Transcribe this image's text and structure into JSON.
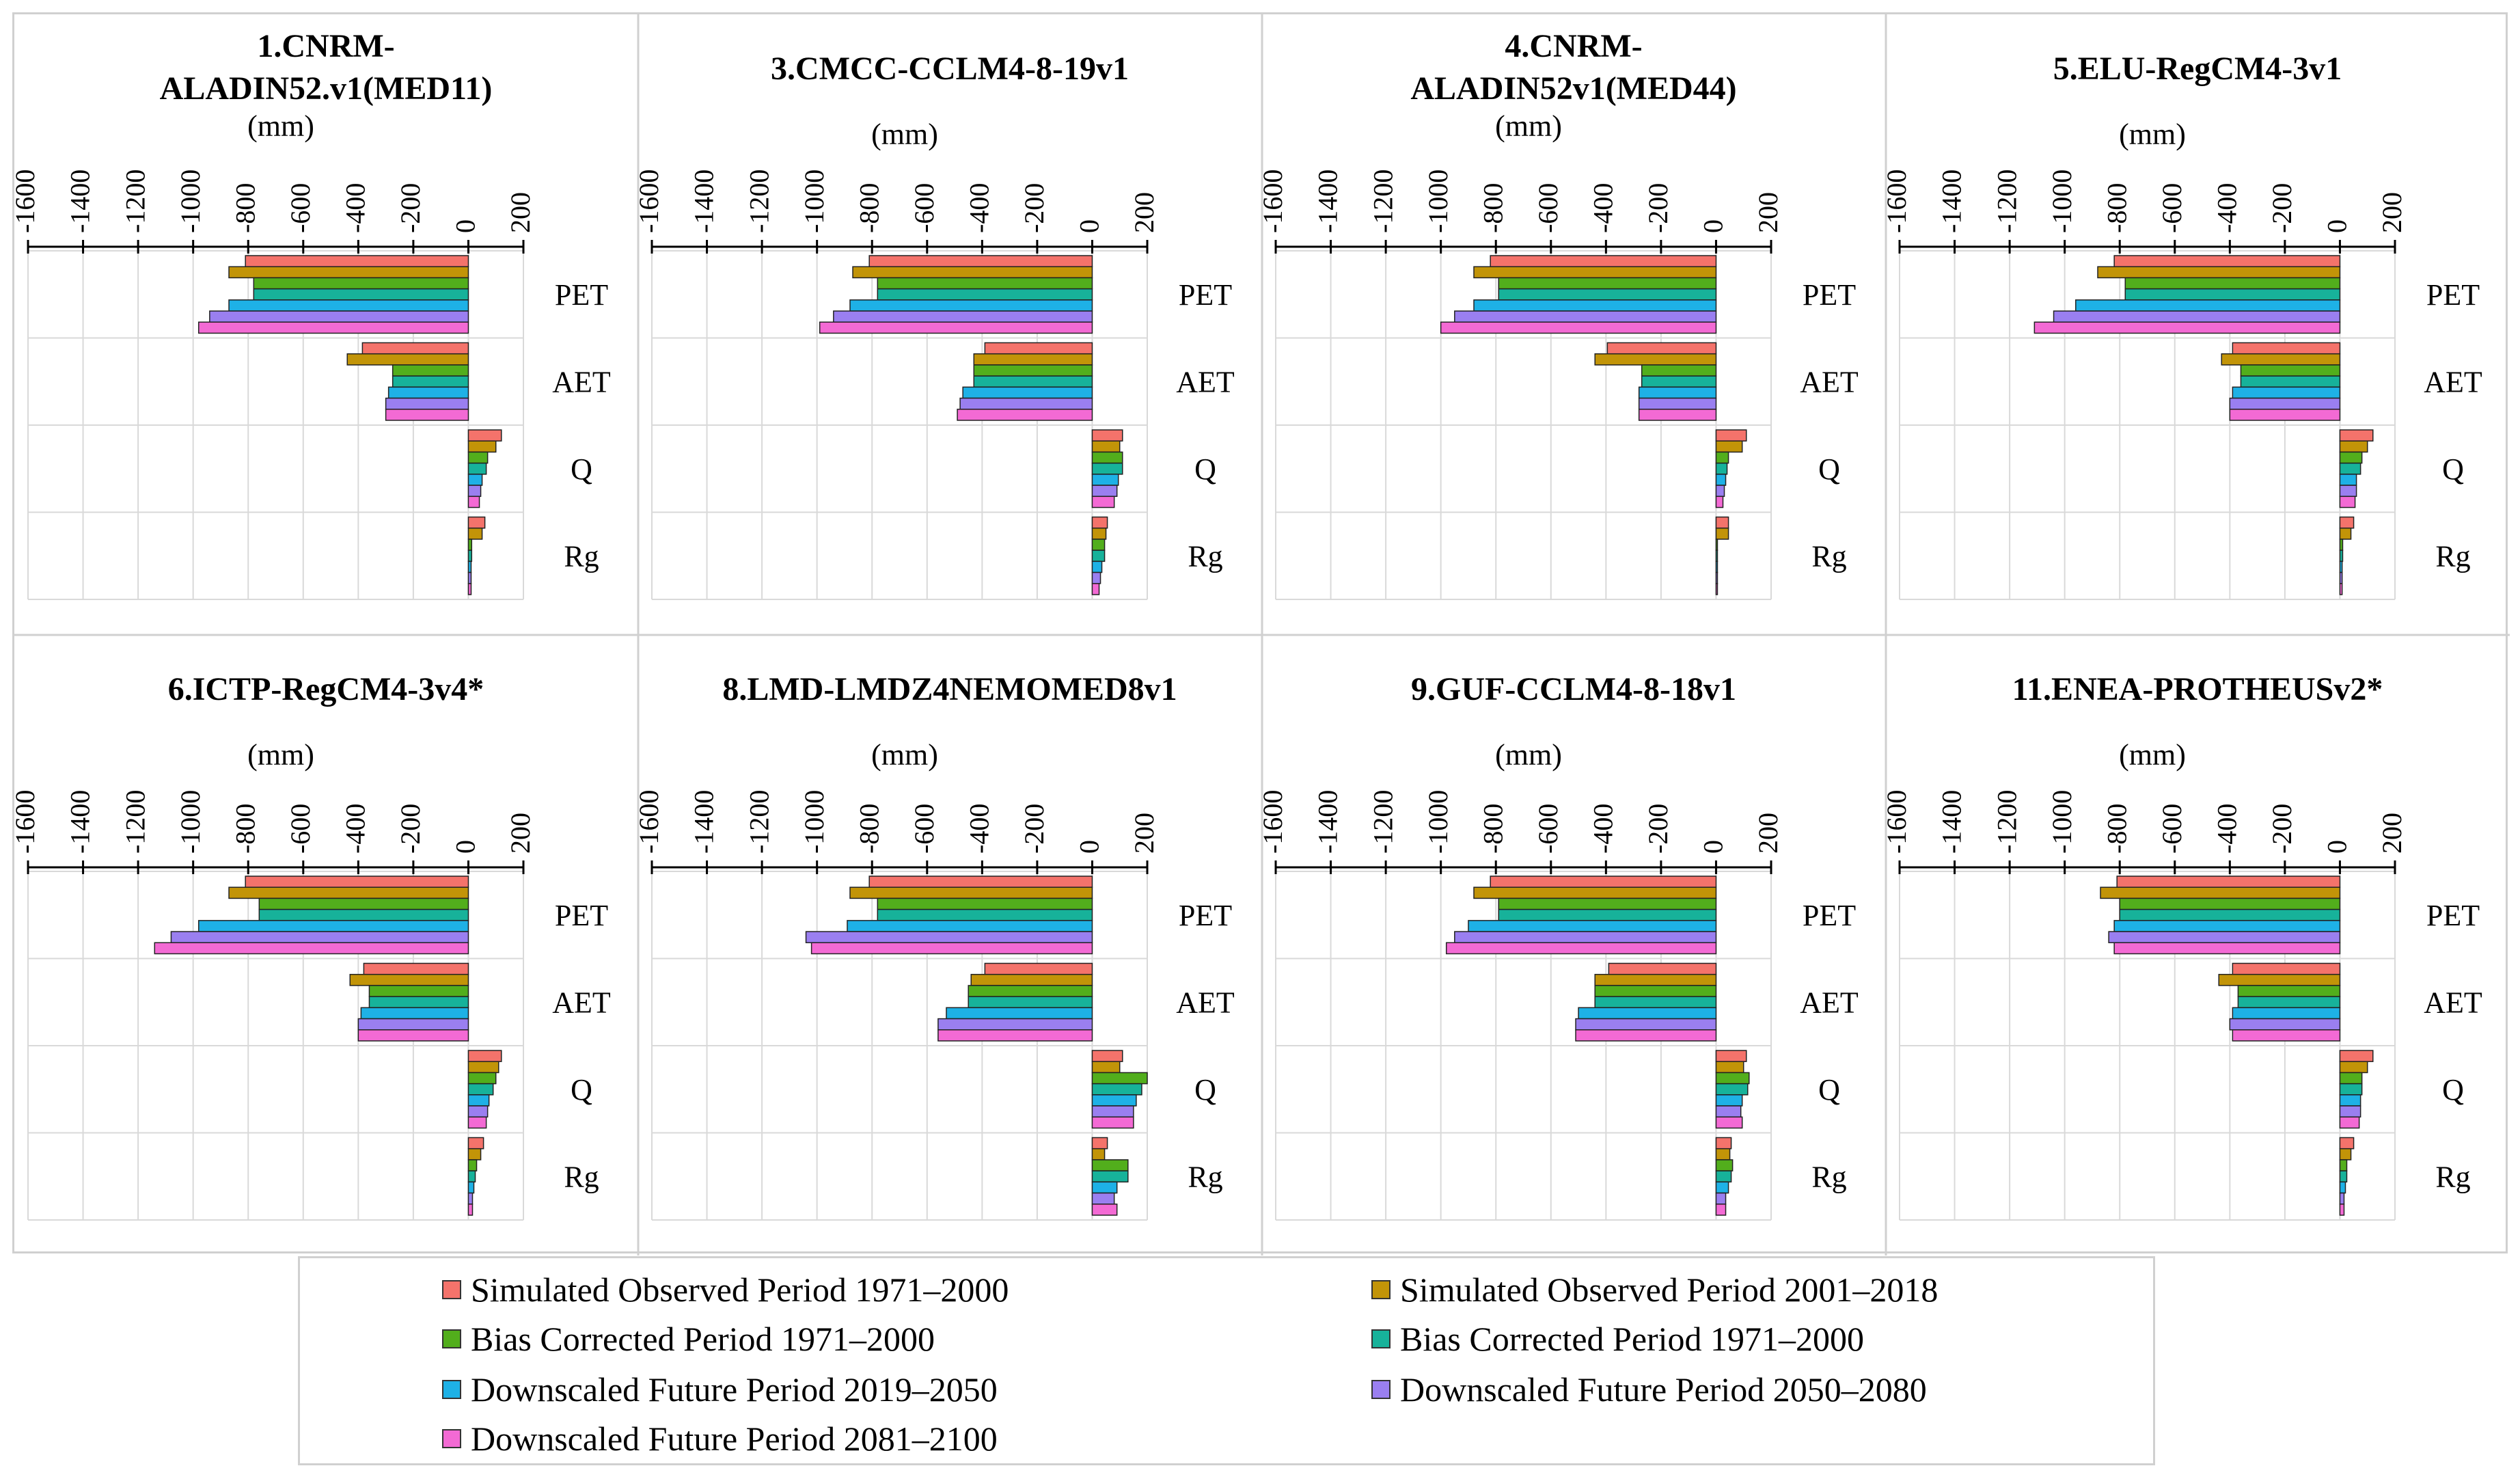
{
  "colors": {
    "series": [
      "#F4736B",
      "#C29408",
      "#52AE1C",
      "#17B29A",
      "#1EB1E6",
      "#9A7FF0",
      "#F36AD4"
    ],
    "grid": "#d9d9d9",
    "axis": "#000000"
  },
  "legend": {
    "items": [
      "Simulated Observed Period 1971–2000",
      "Simulated Observed Period 2001–2018",
      "Bias Corrected Period 1971–2000",
      "Bias Corrected Period 1971–2000",
      "Downscaled Future Period 2019–2050",
      "Downscaled Future Period 2050–2080",
      "Downscaled Future Period 2081–2100"
    ]
  },
  "chart_data": [
    {
      "type": "bar",
      "orientation": "horizontal",
      "title": "1.CNRM-ALADIN52.v1(MED11)",
      "unit": "(mm)",
      "xlim": [
        -1600,
        200
      ],
      "ticks": [
        -1600,
        -1400,
        -1200,
        -1000,
        -800,
        -600,
        -400,
        -200,
        0,
        200
      ],
      "categories": [
        "PET",
        "AET",
        "Q",
        "Rg"
      ],
      "series": [
        {
          "name": "Simulated Observed Period 1971–2000",
          "values": [
            -810,
            -385,
            120,
            60
          ]
        },
        {
          "name": "Simulated Observed Period 2001–2018",
          "values": [
            -870,
            -440,
            100,
            50
          ]
        },
        {
          "name": "Bias Corrected Period 1971–2000",
          "values": [
            -780,
            -275,
            70,
            12
          ]
        },
        {
          "name": "Bias Corrected Period 1971–2000",
          "values": [
            -780,
            -275,
            65,
            12
          ]
        },
        {
          "name": "Downscaled Future Period 2019–2050",
          "values": [
            -870,
            -290,
            50,
            10
          ]
        },
        {
          "name": "Downscaled Future Period 2050–2080",
          "values": [
            -940,
            -300,
            45,
            10
          ]
        },
        {
          "name": "Downscaled Future Period 2081–2100",
          "values": [
            -980,
            -300,
            40,
            10
          ]
        }
      ]
    },
    {
      "type": "bar",
      "orientation": "horizontal",
      "title": "3.CMCC-CCLM4-8-19v1",
      "unit": "(mm)",
      "xlim": [
        -1600,
        200
      ],
      "ticks": [
        -1600,
        -1400,
        -1200,
        -1000,
        -800,
        -600,
        -400,
        -200,
        0,
        200
      ],
      "categories": [
        "PET",
        "AET",
        "Q",
        "Rg"
      ],
      "series": [
        {
          "name": "Simulated Observed Period 1971–2000",
          "values": [
            -810,
            -390,
            110,
            55
          ]
        },
        {
          "name": "Simulated Observed Period 2001–2018",
          "values": [
            -870,
            -430,
            100,
            50
          ]
        },
        {
          "name": "Bias Corrected Period 1971–2000",
          "values": [
            -780,
            -430,
            110,
            45
          ]
        },
        {
          "name": "Bias Corrected Period 1971–2000",
          "values": [
            -780,
            -430,
            110,
            45
          ]
        },
        {
          "name": "Downscaled Future Period 2019–2050",
          "values": [
            -880,
            -470,
            95,
            35
          ]
        },
        {
          "name": "Downscaled Future Period 2050–2080",
          "values": [
            -940,
            -480,
            90,
            30
          ]
        },
        {
          "name": "Downscaled Future Period 2081–2100",
          "values": [
            -990,
            -490,
            80,
            25
          ]
        }
      ]
    },
    {
      "type": "bar",
      "orientation": "horizontal",
      "title": "4.CNRM-ALADIN52v1(MED44)",
      "unit": "(mm)",
      "xlim": [
        -1600,
        200
      ],
      "ticks": [
        -1600,
        -1400,
        -1200,
        -1000,
        -800,
        -600,
        -400,
        -200,
        0,
        200
      ],
      "categories": [
        "PET",
        "AET",
        "Q",
        "Rg"
      ],
      "series": [
        {
          "name": "Simulated Observed Period 1971–2000",
          "values": [
            -820,
            -395,
            110,
            45
          ]
        },
        {
          "name": "Simulated Observed Period 2001–2018",
          "values": [
            -880,
            -440,
            95,
            45
          ]
        },
        {
          "name": "Bias Corrected Period 1971–2000",
          "values": [
            -790,
            -270,
            45,
            5
          ]
        },
        {
          "name": "Bias Corrected Period 1971–2000",
          "values": [
            -790,
            -270,
            40,
            5
          ]
        },
        {
          "name": "Downscaled Future Period 2019–2050",
          "values": [
            -880,
            -280,
            35,
            5
          ]
        },
        {
          "name": "Downscaled Future Period 2050–2080",
          "values": [
            -950,
            -280,
            30,
            5
          ]
        },
        {
          "name": "Downscaled Future Period 2081–2100",
          "values": [
            -1000,
            -280,
            25,
            5
          ]
        }
      ]
    },
    {
      "type": "bar",
      "orientation": "horizontal",
      "title": "5.ELU-RegCM4-3v1",
      "unit": "(mm)",
      "xlim": [
        -1600,
        200
      ],
      "ticks": [
        -1600,
        -1400,
        -1200,
        -1000,
        -800,
        -600,
        -400,
        -200,
        0,
        200
      ],
      "categories": [
        "PET",
        "AET",
        "Q",
        "Rg"
      ],
      "series": [
        {
          "name": "Simulated Observed Period 1971–2000",
          "values": [
            -820,
            -390,
            120,
            50
          ]
        },
        {
          "name": "Simulated Observed Period 2001–2018",
          "values": [
            -880,
            -430,
            100,
            40
          ]
        },
        {
          "name": "Bias Corrected Period 1971–2000",
          "values": [
            -780,
            -360,
            80,
            10
          ]
        },
        {
          "name": "Bias Corrected Period 1971–2000",
          "values": [
            -780,
            -360,
            75,
            10
          ]
        },
        {
          "name": "Downscaled Future Period 2019–2050",
          "values": [
            -960,
            -390,
            60,
            8
          ]
        },
        {
          "name": "Downscaled Future Period 2050–2080",
          "values": [
            -1040,
            -400,
            60,
            8
          ]
        },
        {
          "name": "Downscaled Future Period 2081–2100",
          "values": [
            -1110,
            -400,
            55,
            8
          ]
        }
      ]
    },
    {
      "type": "bar",
      "orientation": "horizontal",
      "title": "6.ICTP-RegCM4-3v4*",
      "unit": "(mm)",
      "xlim": [
        -1600,
        200
      ],
      "ticks": [
        -1600,
        -1400,
        -1200,
        -1000,
        -800,
        -600,
        -400,
        -200,
        0,
        200
      ],
      "categories": [
        "PET",
        "AET",
        "Q",
        "Rg"
      ],
      "series": [
        {
          "name": "Simulated Observed Period 1971–2000",
          "values": [
            -810,
            -380,
            120,
            55
          ]
        },
        {
          "name": "Simulated Observed Period 2001–2018",
          "values": [
            -870,
            -430,
            110,
            45
          ]
        },
        {
          "name": "Bias Corrected Period 1971–2000",
          "values": [
            -760,
            -360,
            100,
            30
          ]
        },
        {
          "name": "Bias Corrected Period 1971–2000",
          "values": [
            -760,
            -360,
            90,
            25
          ]
        },
        {
          "name": "Downscaled Future Period 2019–2050",
          "values": [
            -980,
            -390,
            75,
            20
          ]
        },
        {
          "name": "Downscaled Future Period 2050–2080",
          "values": [
            -1080,
            -400,
            70,
            15
          ]
        },
        {
          "name": "Downscaled Future Period 2081–2100",
          "values": [
            -1140,
            -400,
            65,
            15
          ]
        }
      ]
    },
    {
      "type": "bar",
      "orientation": "horizontal",
      "title": "8.LMD-LMDZ4NEMOMED8v1",
      "unit": "(mm)",
      "xlim": [
        -1600,
        200
      ],
      "ticks": [
        -1600,
        -1400,
        -1200,
        -1000,
        -800,
        -600,
        -400,
        -200,
        0,
        200
      ],
      "categories": [
        "PET",
        "AET",
        "Q",
        "Rg"
      ],
      "series": [
        {
          "name": "Simulated Observed Period 1971–2000",
          "values": [
            -810,
            -390,
            110,
            55
          ]
        },
        {
          "name": "Simulated Observed Period 2001–2018",
          "values": [
            -880,
            -440,
            100,
            45
          ]
        },
        {
          "name": "Bias Corrected Period 1971–2000",
          "values": [
            -780,
            -450,
            200,
            130
          ]
        },
        {
          "name": "Bias Corrected Period 1971–2000",
          "values": [
            -780,
            -450,
            180,
            130
          ]
        },
        {
          "name": "Downscaled Future Period 2019–2050",
          "values": [
            -890,
            -530,
            160,
            90
          ]
        },
        {
          "name": "Downscaled Future Period 2050–2080",
          "values": [
            -1040,
            -560,
            150,
            80
          ]
        },
        {
          "name": "Downscaled Future Period 2081–2100",
          "values": [
            -1020,
            -560,
            150,
            90
          ]
        }
      ]
    },
    {
      "type": "bar",
      "orientation": "horizontal",
      "title": "9.GUF-CCLM4-8-18v1",
      "unit": "(mm)",
      "xlim": [
        -1600,
        200
      ],
      "ticks": [
        -1600,
        -1400,
        -1200,
        -1000,
        -800,
        -600,
        -400,
        -200,
        0,
        200
      ],
      "categories": [
        "PET",
        "AET",
        "Q",
        "Rg"
      ],
      "series": [
        {
          "name": "Simulated Observed Period 1971–2000",
          "values": [
            -820,
            -390,
            110,
            55
          ]
        },
        {
          "name": "Simulated Observed Period 2001–2018",
          "values": [
            -880,
            -440,
            100,
            50
          ]
        },
        {
          "name": "Bias Corrected Period 1971–2000",
          "values": [
            -790,
            -440,
            120,
            60
          ]
        },
        {
          "name": "Bias Corrected Period 1971–2000",
          "values": [
            -790,
            -440,
            115,
            55
          ]
        },
        {
          "name": "Downscaled Future Period 2019–2050",
          "values": [
            -900,
            -500,
            95,
            45
          ]
        },
        {
          "name": "Downscaled Future Period 2050–2080",
          "values": [
            -950,
            -510,
            90,
            35
          ]
        },
        {
          "name": "Downscaled Future Period 2081–2100",
          "values": [
            -980,
            -510,
            95,
            35
          ]
        }
      ]
    },
    {
      "type": "bar",
      "orientation": "horizontal",
      "title": "11.ENEA-PROTHEUSv2*",
      "unit": "(mm)",
      "xlim": [
        -1600,
        200
      ],
      "ticks": [
        -1600,
        -1400,
        -1200,
        -1000,
        -800,
        -600,
        -400,
        -200,
        0,
        200
      ],
      "categories": [
        "PET",
        "AET",
        "Q",
        "Rg"
      ],
      "series": [
        {
          "name": "Simulated Observed Period 1971–2000",
          "values": [
            -810,
            -390,
            120,
            50
          ]
        },
        {
          "name": "Simulated Observed Period 2001–2018",
          "values": [
            -870,
            -440,
            100,
            40
          ]
        },
        {
          "name": "Bias Corrected Period 1971–2000",
          "values": [
            -800,
            -370,
            80,
            25
          ]
        },
        {
          "name": "Bias Corrected Period 1971–2000",
          "values": [
            -800,
            -370,
            80,
            25
          ]
        },
        {
          "name": "Downscaled Future Period 2019–2050",
          "values": [
            -820,
            -390,
            75,
            20
          ]
        },
        {
          "name": "Downscaled Future Period 2050–2080",
          "values": [
            -840,
            -400,
            75,
            15
          ]
        },
        {
          "name": "Downscaled Future Period 2081–2100",
          "values": [
            -820,
            -390,
            70,
            15
          ]
        }
      ]
    }
  ]
}
